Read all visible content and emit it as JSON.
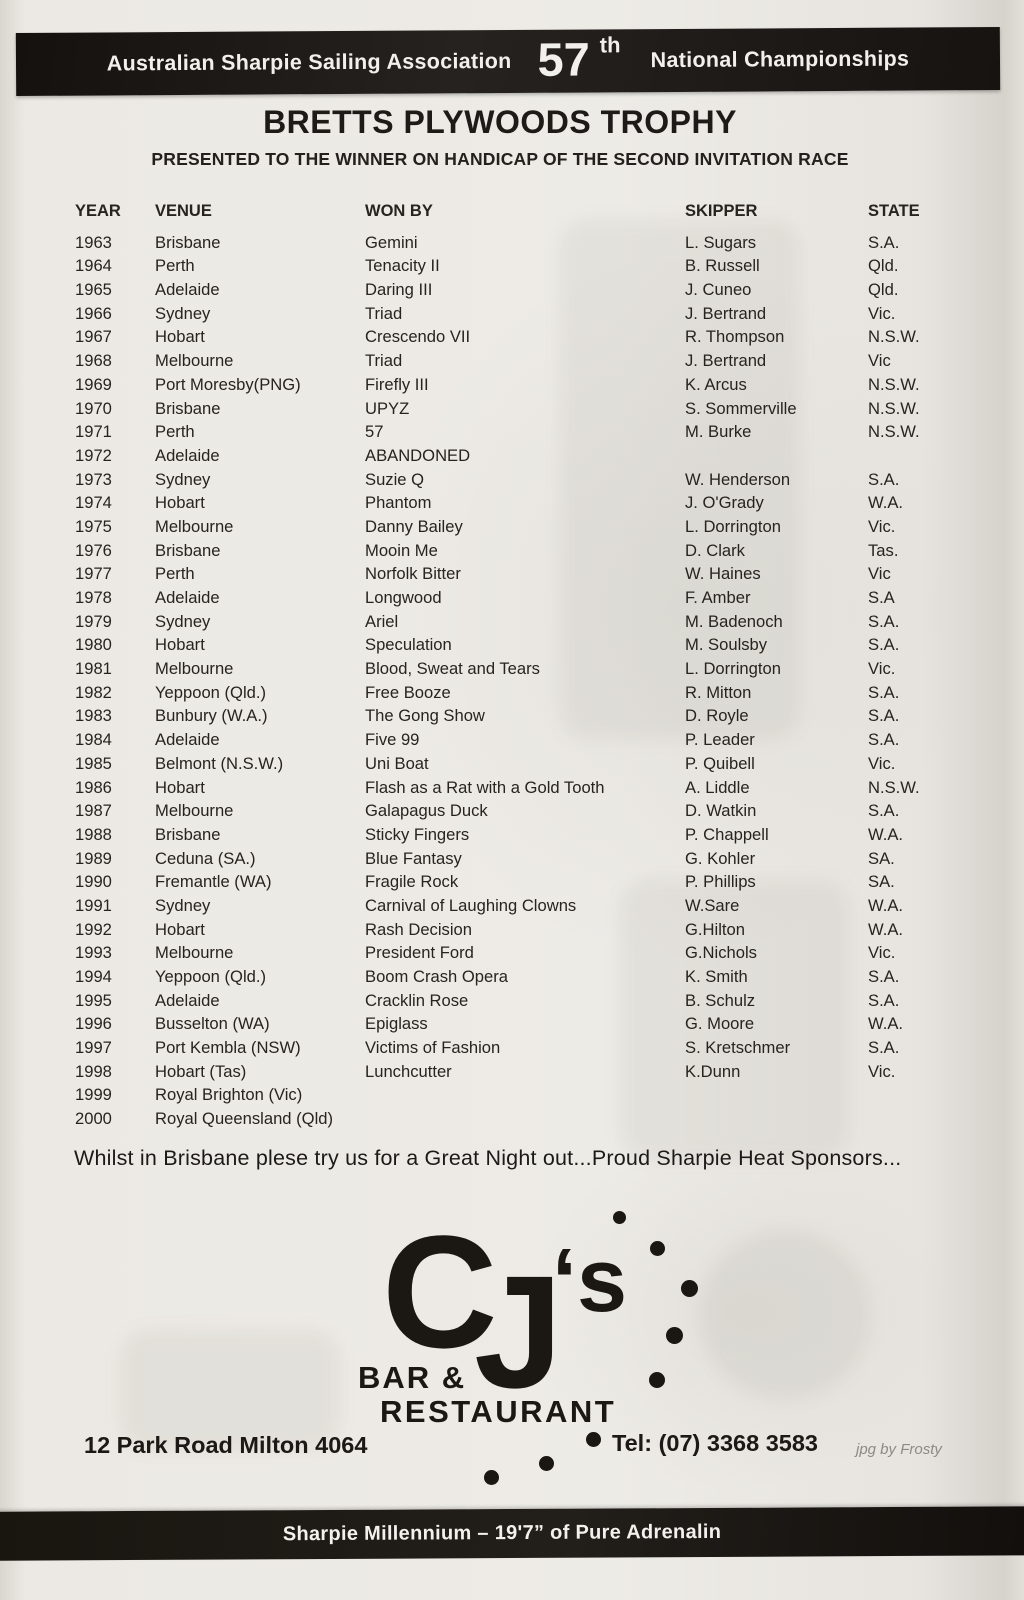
{
  "banner": {
    "left_text": "Australian Sharpie Sailing Association",
    "number": "57",
    "ordinal": "th",
    "right_text": "National Championships"
  },
  "heading": {
    "title": "BRETTS PLYWOODS TROPHY",
    "subtitle": "PRESENTED TO THE WINNER ON HANDICAP OF THE SECOND INVITATION RACE"
  },
  "table": {
    "columns": [
      "YEAR",
      "VENUE",
      "WON BY",
      "SKIPPER",
      "STATE"
    ],
    "rows": [
      [
        "1963",
        "Brisbane",
        "Gemini",
        "L. Sugars",
        "S.A."
      ],
      [
        "1964",
        "Perth",
        "Tenacity II",
        "B. Russell",
        "Qld."
      ],
      [
        "1965",
        "Adelaide",
        "Daring III",
        "J. Cuneo",
        "Qld."
      ],
      [
        "1966",
        "Sydney",
        "Triad",
        "J. Bertrand",
        "Vic."
      ],
      [
        "1967",
        "Hobart",
        "Crescendo VII",
        "R. Thompson",
        "N.S.W."
      ],
      [
        "1968",
        "Melbourne",
        "Triad",
        "J. Bertrand",
        "Vic"
      ],
      [
        "1969",
        "Port Moresby(PNG)",
        "Firefly III",
        "K. Arcus",
        "N.S.W."
      ],
      [
        "1970",
        "Brisbane",
        "UPYZ",
        "S. Sommerville",
        "N.S.W."
      ],
      [
        "1971",
        "Perth",
        "57",
        "M. Burke",
        "N.S.W."
      ],
      [
        "1972",
        "Adelaide",
        "ABANDONED",
        "",
        ""
      ],
      [
        "1973",
        "Sydney",
        "Suzie Q",
        "W. Henderson",
        "S.A."
      ],
      [
        "1974",
        "Hobart",
        "Phantom",
        "J. O'Grady",
        "W.A."
      ],
      [
        "1975",
        "Melbourne",
        "Danny Bailey",
        "L. Dorrington",
        "Vic."
      ],
      [
        "1976",
        "Brisbane",
        "Mooin Me",
        "D. Clark",
        "Tas."
      ],
      [
        "1977",
        "Perth",
        "Norfolk Bitter",
        "W. Haines",
        "Vic"
      ],
      [
        "1978",
        "Adelaide",
        "Longwood",
        "F. Amber",
        "S.A"
      ],
      [
        "1979",
        "Sydney",
        "Ariel",
        "M. Badenoch",
        "S.A."
      ],
      [
        "1980",
        "Hobart",
        "Speculation",
        "M. Soulsby",
        "S.A."
      ],
      [
        "1981",
        "Melbourne",
        "Blood, Sweat and Tears",
        "L. Dorrington",
        "Vic."
      ],
      [
        "1982",
        "Yeppoon (Qld.)",
        "Free Booze",
        "R. Mitton",
        "S.A."
      ],
      [
        "1983",
        "Bunbury (W.A.)",
        "The Gong Show",
        "D. Royle",
        "S.A."
      ],
      [
        "1984",
        "Adelaide",
        "Five 99",
        "P. Leader",
        "S.A."
      ],
      [
        "1985",
        "Belmont (N.S.W.)",
        "Uni Boat",
        "P. Quibell",
        "Vic."
      ],
      [
        "1986",
        "Hobart",
        "Flash as a Rat with a Gold Tooth",
        "A. Liddle",
        "N.S.W."
      ],
      [
        "1987",
        "Melbourne",
        "Galapagus Duck",
        "D. Watkin",
        "S.A."
      ],
      [
        "1988",
        "Brisbane",
        "Sticky Fingers",
        "P. Chappell",
        "W.A."
      ],
      [
        "1989",
        "Ceduna (SA.)",
        "Blue Fantasy",
        "G. Kohler",
        "SA."
      ],
      [
        "1990",
        "Fremantle (WA)",
        "Fragile Rock",
        "P. Phillips",
        "SA."
      ],
      [
        "1991",
        "Sydney",
        "Carnival of Laughing Clowns",
        "W.Sare",
        "W.A."
      ],
      [
        "1992",
        "Hobart",
        "Rash Decision",
        "G.Hilton",
        "W.A."
      ],
      [
        "1993",
        "Melbourne",
        "President Ford",
        "G.Nichols",
        "Vic."
      ],
      [
        "1994",
        "Yeppoon (Qld.)",
        "Boom Crash Opera",
        "K. Smith",
        "S.A."
      ],
      [
        "1995",
        "Adelaide",
        "Cracklin Rose",
        "B. Schulz",
        "S.A."
      ],
      [
        "1996",
        "Busselton (WA)",
        "Epiglass",
        "G. Moore",
        "W.A."
      ],
      [
        "1997",
        "Port Kembla (NSW)",
        "Victims of Fashion",
        "S. Kretschmer",
        "S.A."
      ],
      [
        "1998",
        "Hobart (Tas)",
        "Lunchcutter",
        "K.Dunn",
        "Vic."
      ],
      [
        "1999",
        "Royal Brighton (Vic)",
        "",
        "",
        ""
      ],
      [
        "2000",
        "Royal Queensland (Qld)",
        "",
        "",
        ""
      ]
    ]
  },
  "sponsor_line": "Whilst in Brisbane plese try us for a Great Night out...Proud Sharpie Heat Sponsors...",
  "advert": {
    "logo_main_c": "C",
    "logo_main_j": "J",
    "logo_apostrophe_s": "‘s",
    "logo_line1": "BAR &",
    "logo_line2": "RESTAURANT",
    "address": "12 Park Road Milton 4064",
    "phone": "Tel: (07) 3368 3583",
    "credit": "jpg by Frosty"
  },
  "footer": {
    "text": "Sharpie Millennium – 19'7” of Pure Adrenalin"
  }
}
